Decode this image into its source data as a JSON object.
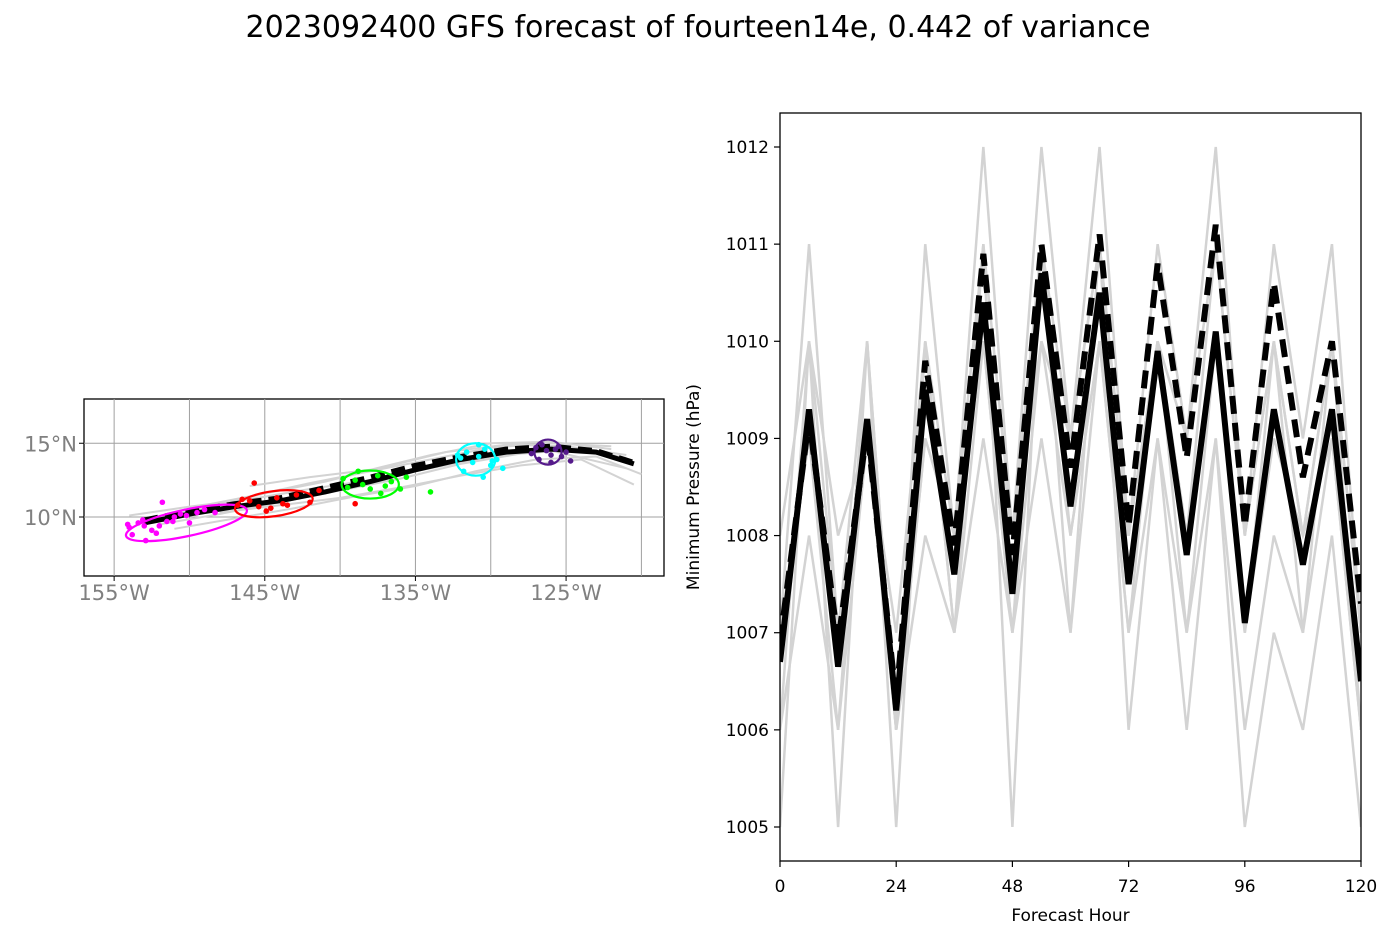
{
  "figure": {
    "title": "2023092400 GFS forecast of fourteen14e, 0.442 of variance"
  },
  "chart_data": [
    {
      "type": "map",
      "lon_range": [
        -157,
        -118.5
      ],
      "lat_range": [
        6,
        18
      ],
      "lon_ticks": [
        -155,
        -145,
        -135,
        -125
      ],
      "lat_ticks": [
        10,
        15
      ],
      "lon_tick_labels": [
        "155°W",
        "145°W",
        "135°W",
        "125°W"
      ],
      "lat_tick_labels": [
        "10°N",
        "15°N"
      ],
      "grid": true,
      "mean_track": {
        "lon": [
          -153,
          -150,
          -147,
          -144,
          -141,
          -138,
          -135,
          -132,
          -129,
          -126,
          -123,
          -120.5
        ],
        "lat": [
          9.6,
          10.2,
          10.7,
          11.1,
          11.7,
          12.4,
          13.2,
          13.9,
          14.4,
          14.6,
          14.4,
          13.6
        ]
      },
      "dashed_track": {
        "lon": [
          -153,
          -150,
          -147,
          -144,
          -141,
          -138,
          -135,
          -132,
          -129,
          -126,
          -123,
          -120.5
        ],
        "lat": [
          9.8,
          10.4,
          10.9,
          11.3,
          12.0,
          12.7,
          13.5,
          14.1,
          14.6,
          14.8,
          14.5,
          13.7
        ]
      },
      "ensemble_tracks": [
        {
          "lon": [
            -152,
            -148,
            -144,
            -140,
            -136,
            -132,
            -128,
            -124,
            -121
          ],
          "lat": [
            9.5,
            10.2,
            11.0,
            11.8,
            12.6,
            13.6,
            14.3,
            14.6,
            14.0
          ]
        },
        {
          "lon": [
            -153,
            -149,
            -145,
            -141,
            -137,
            -133,
            -129,
            -125,
            -121
          ],
          "lat": [
            9.8,
            10.6,
            11.6,
            12.4,
            13.4,
            14.4,
            14.9,
            14.8,
            14.2
          ]
        },
        {
          "lon": [
            -151,
            -147,
            -143,
            -139,
            -135,
            -131,
            -127,
            -123,
            -120
          ],
          "lat": [
            9.2,
            9.9,
            10.6,
            11.4,
            12.1,
            13.1,
            13.9,
            14.1,
            12.9
          ]
        },
        {
          "lon": [
            -150,
            -146,
            -142,
            -138,
            -134,
            -130,
            -126,
            -122
          ],
          "lat": [
            10.6,
            11.4,
            12.3,
            13.1,
            13.9,
            14.7,
            15.0,
            14.8
          ]
        },
        {
          "lon": [
            -154,
            -150,
            -146,
            -142,
            -138,
            -134,
            -130,
            -126,
            -121
          ],
          "lat": [
            10.1,
            10.7,
            11.2,
            11.9,
            12.5,
            13.3,
            14.1,
            14.5,
            13.3
          ]
        },
        {
          "lon": [
            -148,
            -144,
            -140,
            -136,
            -132,
            -128,
            -124,
            -120.5
          ],
          "lat": [
            10.3,
            10.8,
            11.3,
            12.0,
            12.8,
            13.5,
            13.9,
            12.2
          ]
        },
        {
          "lon": [
            -146,
            -142,
            -138,
            -134,
            -130,
            -126,
            -122
          ],
          "lat": [
            12.1,
            12.7,
            13.2,
            14.2,
            15.0,
            15.1,
            14.6
          ]
        }
      ],
      "uncertainty_ellipses": [
        {
          "color": "#ff00ff",
          "lon": -150.2,
          "lat": 9.6,
          "rx_deg": 4.1,
          "ry_deg": 0.9,
          "angle_deg": -12
        },
        {
          "color": "#ff0000",
          "lon": -144.4,
          "lat": 10.9,
          "rx_deg": 2.6,
          "ry_deg": 0.85,
          "angle_deg": -8
        },
        {
          "color": "#00ff00",
          "lon": -138.0,
          "lat": 12.2,
          "rx_deg": 1.9,
          "ry_deg": 0.95,
          "angle_deg": 0
        },
        {
          "color": "#00ffff",
          "lon": -131.0,
          "lat": 13.9,
          "rx_deg": 1.3,
          "ry_deg": 1.1,
          "angle_deg": 0
        },
        {
          "color": "#551a8b",
          "lon": -126.2,
          "lat": 14.4,
          "rx_deg": 0.9,
          "ry_deg": 0.85,
          "angle_deg": 0
        }
      ],
      "ensemble_points": [
        {
          "color": "#ff00ff",
          "lon": [
            -154.0,
            -153.4,
            -153.1,
            -152.5,
            -152.0,
            -151.5,
            -151.0,
            -150.6,
            -150.0,
            -149.5,
            -149.0,
            -148.3,
            -153.8,
            -152.9,
            -151.8,
            -150.2,
            -154.1,
            -153.0,
            -152.2,
            -151.1
          ],
          "lat": [
            9.3,
            9.6,
            9.8,
            9.1,
            9.4,
            9.7,
            10.0,
            10.2,
            9.6,
            10.3,
            10.5,
            10.3,
            8.8,
            8.4,
            11.0,
            10.1,
            9.5,
            9.4,
            8.9,
            9.7
          ]
        },
        {
          "color": "#ff0000",
          "lon": [
            -146.8,
            -146.0,
            -145.4,
            -144.9,
            -144.2,
            -143.5,
            -142.9,
            -142.0,
            -141.4,
            -146.5,
            -145.7,
            -144.6,
            -143.8,
            -139.0
          ],
          "lat": [
            10.8,
            11.1,
            10.7,
            10.4,
            11.3,
            10.8,
            11.5,
            11.0,
            11.8,
            11.2,
            12.3,
            10.6,
            10.9,
            10.9
          ]
        },
        {
          "color": "#00ff00",
          "lon": [
            -139.5,
            -139.0,
            -138.5,
            -138.0,
            -137.5,
            -137.0,
            -136.6,
            -136.0,
            -139.8,
            -138.8,
            -137.3,
            -135.6,
            -134.0
          ],
          "lat": [
            12.0,
            12.5,
            12.2,
            11.9,
            12.8,
            12.1,
            12.4,
            11.9,
            12.6,
            13.1,
            11.6,
            12.7,
            11.7
          ]
        },
        {
          "color": "#00ffff",
          "lon": [
            -132.0,
            -131.6,
            -131.2,
            -130.8,
            -130.4,
            -130.0,
            -129.6,
            -129.2,
            -131.8,
            -130.5,
            -129.9,
            -132.2,
            -130.8
          ],
          "lat": [
            14.0,
            14.4,
            13.7,
            14.1,
            14.6,
            13.5,
            13.9,
            13.3,
            13.1,
            12.7,
            13.8,
            14.2,
            14.9
          ]
        },
        {
          "color": "#551a8b",
          "lon": [
            -127.3,
            -127.0,
            -126.6,
            -126.3,
            -126.0,
            -125.7,
            -125.3,
            -125.0,
            -126.8,
            -126.0,
            -125.5,
            -124.7
          ],
          "lat": [
            14.3,
            14.7,
            14.9,
            14.5,
            14.2,
            14.6,
            14.1,
            14.4,
            13.9,
            13.7,
            14.8,
            13.8
          ]
        }
      ]
    },
    {
      "type": "line",
      "xlabel": "Forecast Hour",
      "ylabel": "Minimum Pressure (hPa)",
      "xlim": [
        0,
        120
      ],
      "ylim": [
        1004.65,
        1012.35
      ],
      "xticks": [
        0,
        24,
        48,
        72,
        96,
        120
      ],
      "yticks": [
        1005,
        1006,
        1007,
        1008,
        1009,
        1010,
        1011,
        1012
      ],
      "x": [
        0,
        6,
        12,
        18,
        24,
        30,
        36,
        42,
        48,
        54,
        60,
        66,
        72,
        78,
        84,
        90,
        96,
        102,
        108,
        114,
        120
      ],
      "mean": [
        1006.7,
        1009.3,
        1006.65,
        1009.2,
        1006.2,
        1009.5,
        1007.6,
        1010.4,
        1007.4,
        1010.7,
        1008.3,
        1010.5,
        1007.5,
        1009.9,
        1007.8,
        1010.1,
        1007.1,
        1009.3,
        1007.7,
        1009.3,
        1006.5
      ],
      "dashed": [
        1006.9,
        1009.2,
        1006.9,
        1009.1,
        1006.3,
        1009.8,
        1007.9,
        1010.9,
        1007.8,
        1011.0,
        1008.7,
        1011.1,
        1008.1,
        1010.8,
        1008.8,
        1011.2,
        1008.1,
        1010.6,
        1008.6,
        1010.0,
        1007.3
      ],
      "ensemble": [
        [
          1007.0,
          1011.0,
          1007.0,
          1010.0,
          1006.0,
          1011.0,
          1008.0,
          1012.0,
          1008.0,
          1012.0,
          1009.0,
          1012.0,
          1008.0,
          1011.0,
          1009.0,
          1012.0,
          1008.0,
          1011.0,
          1009.0,
          1011.0,
          1007.0
        ],
        [
          1005.0,
          1010.0,
          1005.0,
          1010.0,
          1005.0,
          1010.0,
          1007.0,
          1011.0,
          1005.0,
          1011.0,
          1007.0,
          1011.0,
          1006.0,
          1009.0,
          1006.0,
          1009.0,
          1005.0,
          1007.0,
          1006.0,
          1008.0,
          1005.0
        ],
        [
          1006.0,
          1008.0,
          1006.0,
          1009.0,
          1006.0,
          1008.0,
          1007.0,
          1009.0,
          1007.0,
          1009.0,
          1007.0,
          1010.0,
          1007.0,
          1009.0,
          1007.0,
          1009.0,
          1006.0,
          1008.0,
          1007.0,
          1009.0,
          1006.0
        ],
        [
          1008.0,
          1010.0,
          1008.0,
          1009.0,
          1007.0,
          1010.0,
          1008.0,
          1011.0,
          1008.0,
          1011.0,
          1009.0,
          1011.0,
          1008.0,
          1010.0,
          1008.0,
          1011.0,
          1008.0,
          1010.0,
          1008.0,
          1010.0,
          1007.0
        ],
        [
          1007.0,
          1009.0,
          1006.0,
          1010.0,
          1006.0,
          1009.0,
          1008.0,
          1010.0,
          1007.0,
          1011.0,
          1008.0,
          1010.0,
          1008.0,
          1010.0,
          1008.0,
          1010.0,
          1007.0,
          1009.0,
          1008.0,
          1009.0,
          1006.0
        ],
        [
          1006.0,
          1010.0,
          1007.0,
          1009.0,
          1006.0,
          1010.0,
          1007.0,
          1010.0,
          1007.0,
          1010.0,
          1008.0,
          1010.0,
          1007.0,
          1010.0,
          1007.0,
          1010.0,
          1007.0,
          1010.0,
          1007.0,
          1010.0,
          1006.0
        ],
        [
          1007.0,
          1009.0,
          1007.0,
          1009.0,
          1006.0,
          1009.0,
          1008.0,
          1010.0,
          1008.0,
          1010.0,
          1009.0,
          1011.0,
          1008.0,
          1010.0,
          1009.0,
          1011.0,
          1008.0,
          1010.0,
          1008.0,
          1010.0,
          1007.0
        ]
      ]
    }
  ]
}
